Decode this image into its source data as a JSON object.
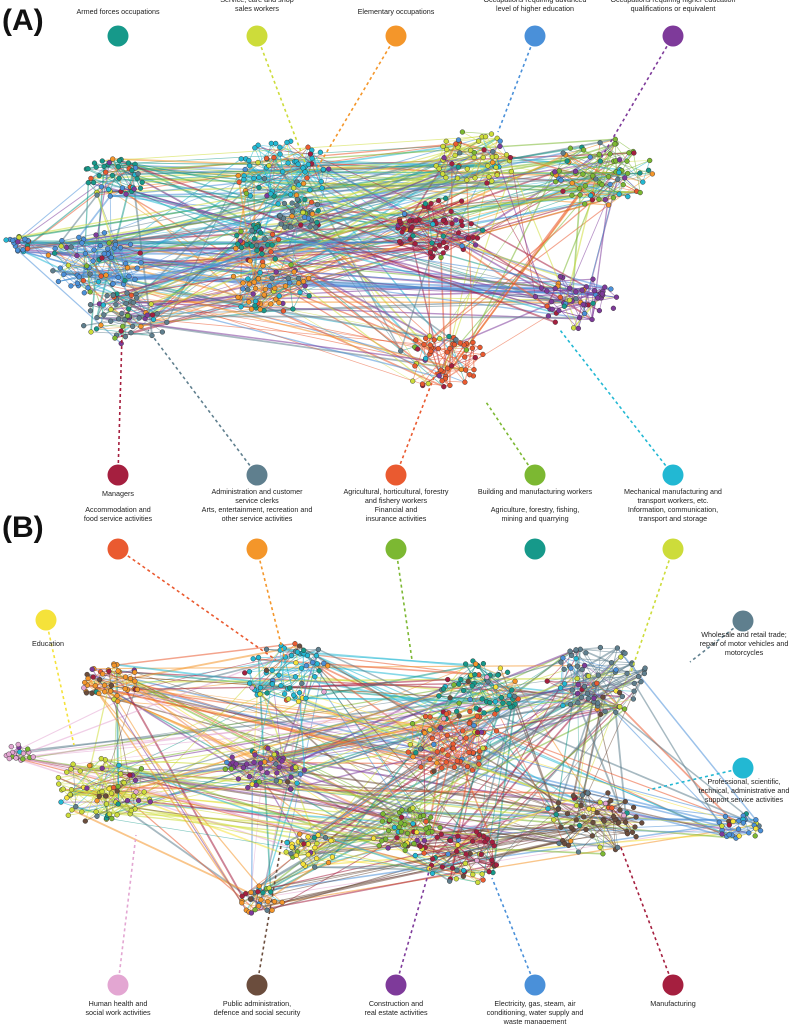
{
  "panels": [
    {
      "letter": "(A)",
      "categories": [
        {
          "label": [
            "Armed forces occupations"
          ],
          "color": "#16998a"
        },
        {
          "label": [
            "Service, care and shop",
            "sales workers"
          ],
          "color": "#cddc3a"
        },
        {
          "label": [
            "Elementary occupations"
          ],
          "color": "#f4962a"
        },
        {
          "label": [
            "Occupations requiring advanced",
            "level of higher education"
          ],
          "color": "#4a90d9"
        },
        {
          "label": [
            "Occupations requiring higher education",
            "qualifications or equivalent"
          ],
          "color": "#7e3a9a"
        },
        {
          "label": [
            "Managers"
          ],
          "color": "#a51f3f"
        },
        {
          "label": [
            "Administration and customer",
            "service clerks"
          ],
          "color": "#5f7f8e"
        },
        {
          "label": [
            "Agricultural, horticultural, forestry",
            "and fishery workers"
          ],
          "color": "#ea5a30"
        },
        {
          "label": [
            "Building and manufacturing workers"
          ],
          "color": "#7cb832"
        },
        {
          "label": [
            "Mechanical manufacturing and",
            "transport workers, etc."
          ],
          "color": "#22b8d3"
        }
      ]
    },
    {
      "letter": "(B)",
      "categories": [
        {
          "label": [
            "Accommodation and",
            "food service activities"
          ],
          "color": "#ea5a30"
        },
        {
          "label": [
            "Arts, entertainment, recreation and",
            "other service activities"
          ],
          "color": "#f4962a"
        },
        {
          "label": [
            "Financial and",
            "insurance activities"
          ],
          "color": "#7cb832"
        },
        {
          "label": [
            "Agriculture, forestry, fishing,",
            "mining and quarrying"
          ],
          "color": "#16998a"
        },
        {
          "label": [
            "Information, communication,",
            "transport and storage"
          ],
          "color": "#cddc3a"
        },
        {
          "label": [
            "Education"
          ],
          "color": "#f5e23a"
        },
        {
          "label": [
            "Wholesale and retail trade;",
            "repair of motor vehicles and",
            "motorcycles"
          ],
          "color": "#5f7f8e"
        },
        {
          "label": [
            "Professional, scientific,",
            "technical, administrative and",
            "support service activities"
          ],
          "color": "#22b8d3"
        },
        {
          "label": [
            "Human health and",
            "social work activities"
          ],
          "color": "#e3a6d2"
        },
        {
          "label": [
            "Public administration,",
            "defence and social security"
          ],
          "color": "#6b4d3d"
        },
        {
          "label": [
            "Construction and",
            "real estate activities"
          ],
          "color": "#7e3a9a"
        },
        {
          "label": [
            "Electricity, gas, steam, air",
            "conditioning, water supply and",
            "waste management"
          ],
          "color": "#4a90d9"
        },
        {
          "label": [
            "Manufacturing"
          ],
          "color": "#a51f3f"
        }
      ]
    }
  ]
}
